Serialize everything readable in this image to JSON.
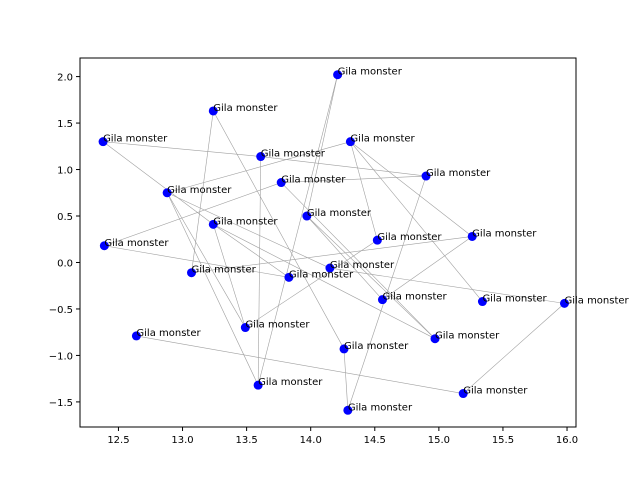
{
  "chart_data": {
    "type": "scatter",
    "title": "",
    "xlabel": "",
    "ylabel": "",
    "xlim": [
      12.2,
      16.07
    ],
    "ylim": [
      -1.77,
      2.2
    ],
    "grid": false,
    "colors": {
      "marker": "#0000ff",
      "edge": "#a0a0a0",
      "axis": "#000000",
      "background": "#ffffff"
    },
    "x_ticks": [
      {
        "value": 12.5,
        "label": "12.5"
      },
      {
        "value": 13.0,
        "label": "13.0"
      },
      {
        "value": 13.5,
        "label": "13.5"
      },
      {
        "value": 14.0,
        "label": "14.0"
      },
      {
        "value": 14.5,
        "label": "14.5"
      },
      {
        "value": 15.0,
        "label": "15.0"
      },
      {
        "value": 15.5,
        "label": "15.5"
      },
      {
        "value": 16.0,
        "label": "16.0"
      }
    ],
    "y_ticks": [
      {
        "value": -1.5,
        "label": "−1.5"
      },
      {
        "value": -1.0,
        "label": "−1.0"
      },
      {
        "value": -0.5,
        "label": "−0.5"
      },
      {
        "value": 0.0,
        "label": "0.0"
      },
      {
        "value": 0.5,
        "label": "0.5"
      },
      {
        "value": 1.0,
        "label": "1.0"
      },
      {
        "value": 1.5,
        "label": "1.5"
      },
      {
        "value": 2.0,
        "label": "2.0"
      }
    ],
    "points": [
      {
        "x": 14.21,
        "y": 2.02,
        "label": "Gila monster"
      },
      {
        "x": 13.24,
        "y": 1.63,
        "label": "Gila monster"
      },
      {
        "x": 12.38,
        "y": 1.3,
        "label": "Gila monster"
      },
      {
        "x": 14.31,
        "y": 1.3,
        "label": "Gila monster"
      },
      {
        "x": 13.61,
        "y": 1.14,
        "label": "Gila monster"
      },
      {
        "x": 14.9,
        "y": 0.93,
        "label": "Gila monster"
      },
      {
        "x": 13.77,
        "y": 0.86,
        "label": "Gila monster"
      },
      {
        "x": 12.88,
        "y": 0.75,
        "label": "Gila monster"
      },
      {
        "x": 13.97,
        "y": 0.5,
        "label": "Gila monster"
      },
      {
        "x": 13.24,
        "y": 0.41,
        "label": "Gila monster"
      },
      {
        "x": 14.52,
        "y": 0.24,
        "label": "Gila monster"
      },
      {
        "x": 15.26,
        "y": 0.28,
        "label": "Gila monster"
      },
      {
        "x": 12.39,
        "y": 0.18,
        "label": "Gila monster"
      },
      {
        "x": 14.15,
        "y": -0.06,
        "label": "Gila monster"
      },
      {
        "x": 13.07,
        "y": -0.11,
        "label": "Gila monster"
      },
      {
        "x": 13.83,
        "y": -0.16,
        "label": "Gila monster"
      },
      {
        "x": 14.56,
        "y": -0.4,
        "label": "Gila monster"
      },
      {
        "x": 15.34,
        "y": -0.42,
        "label": "Gila monster"
      },
      {
        "x": 15.98,
        "y": -0.44,
        "label": "Gila monster"
      },
      {
        "x": 14.97,
        "y": -0.82,
        "label": "Gila monster"
      },
      {
        "x": 12.64,
        "y": -0.79,
        "label": "Gila monster"
      },
      {
        "x": 13.49,
        "y": -0.7,
        "label": "Gila monster"
      },
      {
        "x": 14.26,
        "y": -0.93,
        "label": "Gila monster"
      },
      {
        "x": 13.59,
        "y": -1.32,
        "label": "Gila monster"
      },
      {
        "x": 15.19,
        "y": -1.41,
        "label": "Gila monster"
      },
      {
        "x": 14.29,
        "y": -1.59,
        "label": "Gila monster"
      }
    ],
    "edges": [
      [
        0,
        8
      ],
      [
        0,
        23
      ],
      [
        1,
        14
      ],
      [
        1,
        22
      ],
      [
        2,
        4
      ],
      [
        2,
        9
      ],
      [
        3,
        7
      ],
      [
        3,
        10
      ],
      [
        3,
        11
      ],
      [
        3,
        17
      ],
      [
        4,
        23
      ],
      [
        4,
        5
      ],
      [
        5,
        6
      ],
      [
        5,
        25
      ],
      [
        6,
        12
      ],
      [
        6,
        19
      ],
      [
        7,
        13
      ],
      [
        7,
        23
      ],
      [
        8,
        19
      ],
      [
        8,
        16
      ],
      [
        9,
        15
      ],
      [
        9,
        19
      ],
      [
        9,
        21
      ],
      [
        10,
        21
      ],
      [
        11,
        14
      ],
      [
        11,
        16
      ],
      [
        12,
        15
      ],
      [
        13,
        18
      ],
      [
        18,
        24
      ],
      [
        20,
        24
      ],
      [
        21,
        7
      ],
      [
        22,
        25
      ]
    ]
  }
}
